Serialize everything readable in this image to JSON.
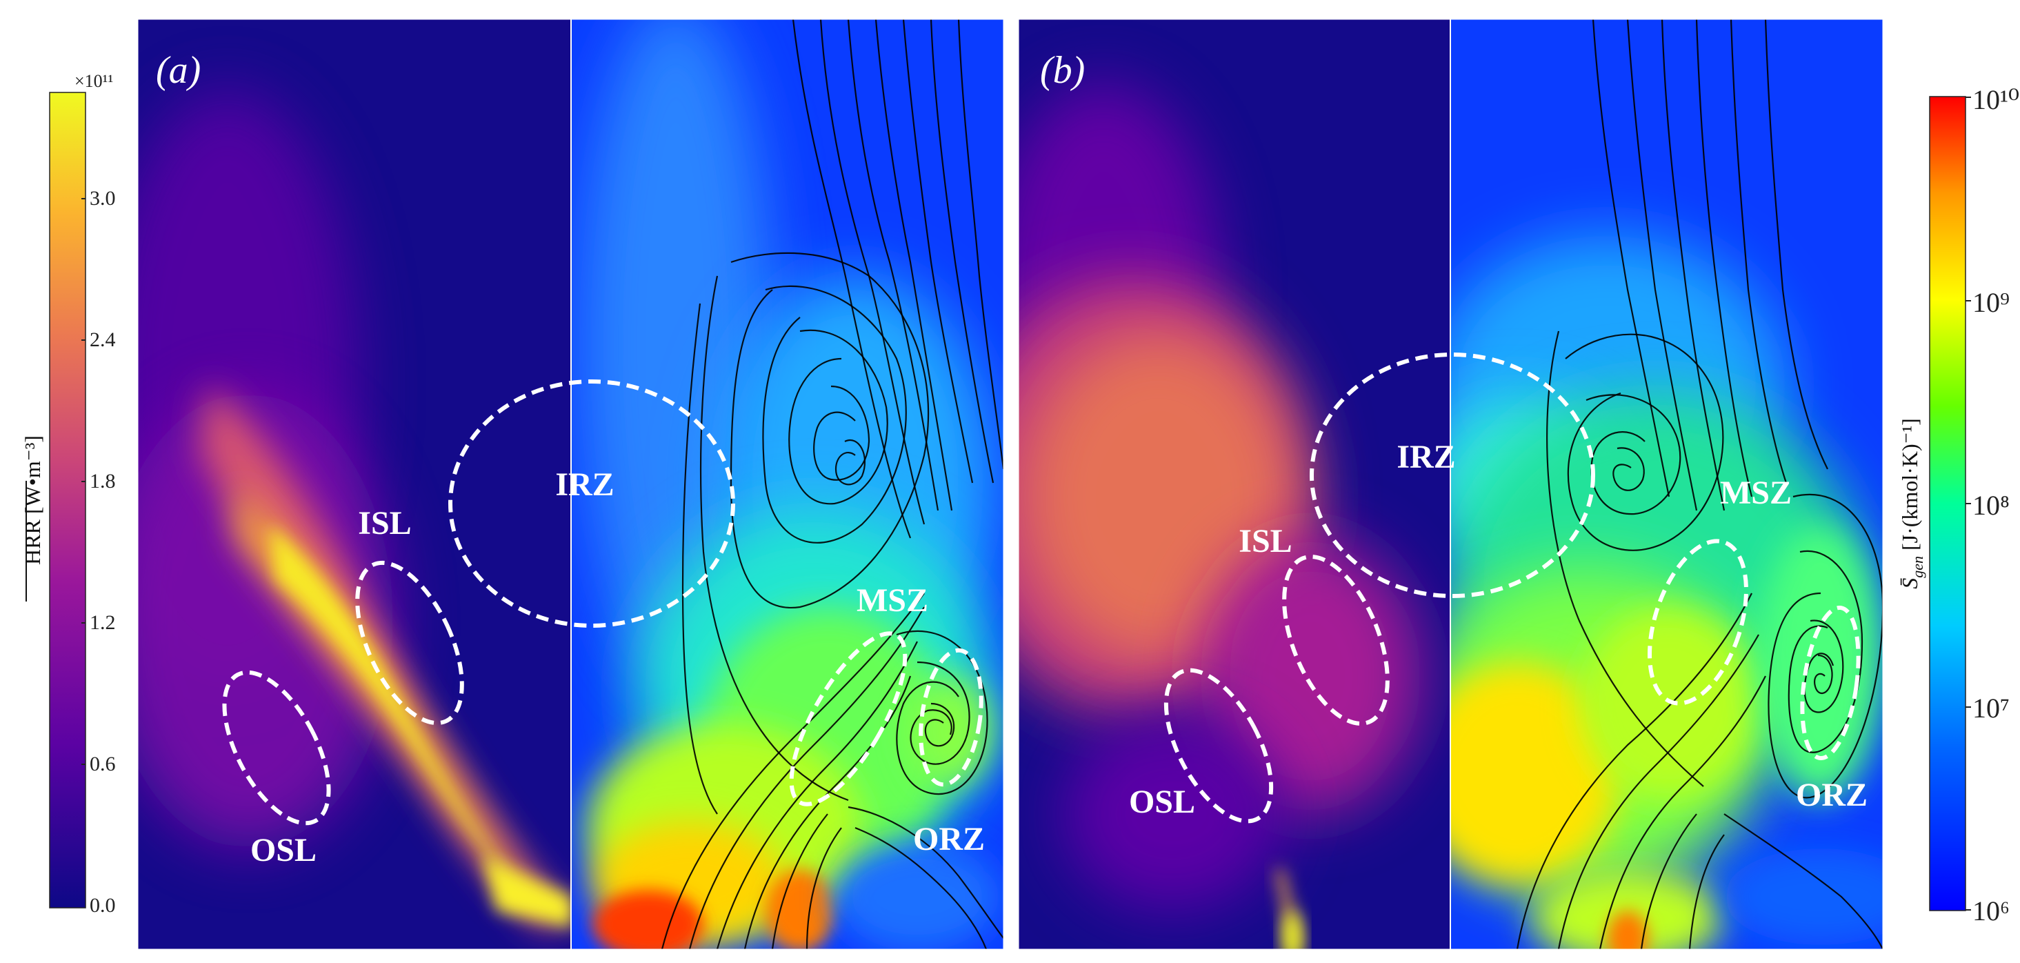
{
  "panels": {
    "a": {
      "letter": "(a)",
      "zones": {
        "irz": "IRZ",
        "isl": "ISL",
        "osl": "OSL",
        "msz": "MSZ",
        "orz": "ORZ"
      }
    },
    "b": {
      "letter": "(b)",
      "zones": {
        "irz": "IRZ",
        "isl": "ISL",
        "osl": "OSL",
        "msz": "MSZ",
        "orz": "ORZ"
      }
    }
  },
  "left_colorbar": {
    "label": "HRR [W•m⁻³]",
    "multiplier": "×10¹¹",
    "ticks": [
      "3.0",
      "2.4",
      "1.8",
      "1.2",
      "0.6",
      "0.0"
    ],
    "range": [
      0.0,
      3.4
    ],
    "colormap": "plasma",
    "colors": [
      "#0d0887",
      "#6a00a8",
      "#b12a90",
      "#e16462",
      "#fca636",
      "#f0f921"
    ]
  },
  "right_colorbar": {
    "label_main": "S̄",
    "label_sub": "gen",
    "label_unit": " [J·(kmol·K)⁻¹]",
    "ticks": [
      "10¹⁰",
      "10⁹",
      "10⁸",
      "10⁷",
      "10⁶"
    ],
    "scale": "log",
    "range": [
      1000000,
      10000000000
    ],
    "colormap": "jet",
    "colors": [
      "#0000ff",
      "#00aaff",
      "#00ffaa",
      "#aaff00",
      "#ffaa00",
      "#ff0000"
    ]
  }
}
